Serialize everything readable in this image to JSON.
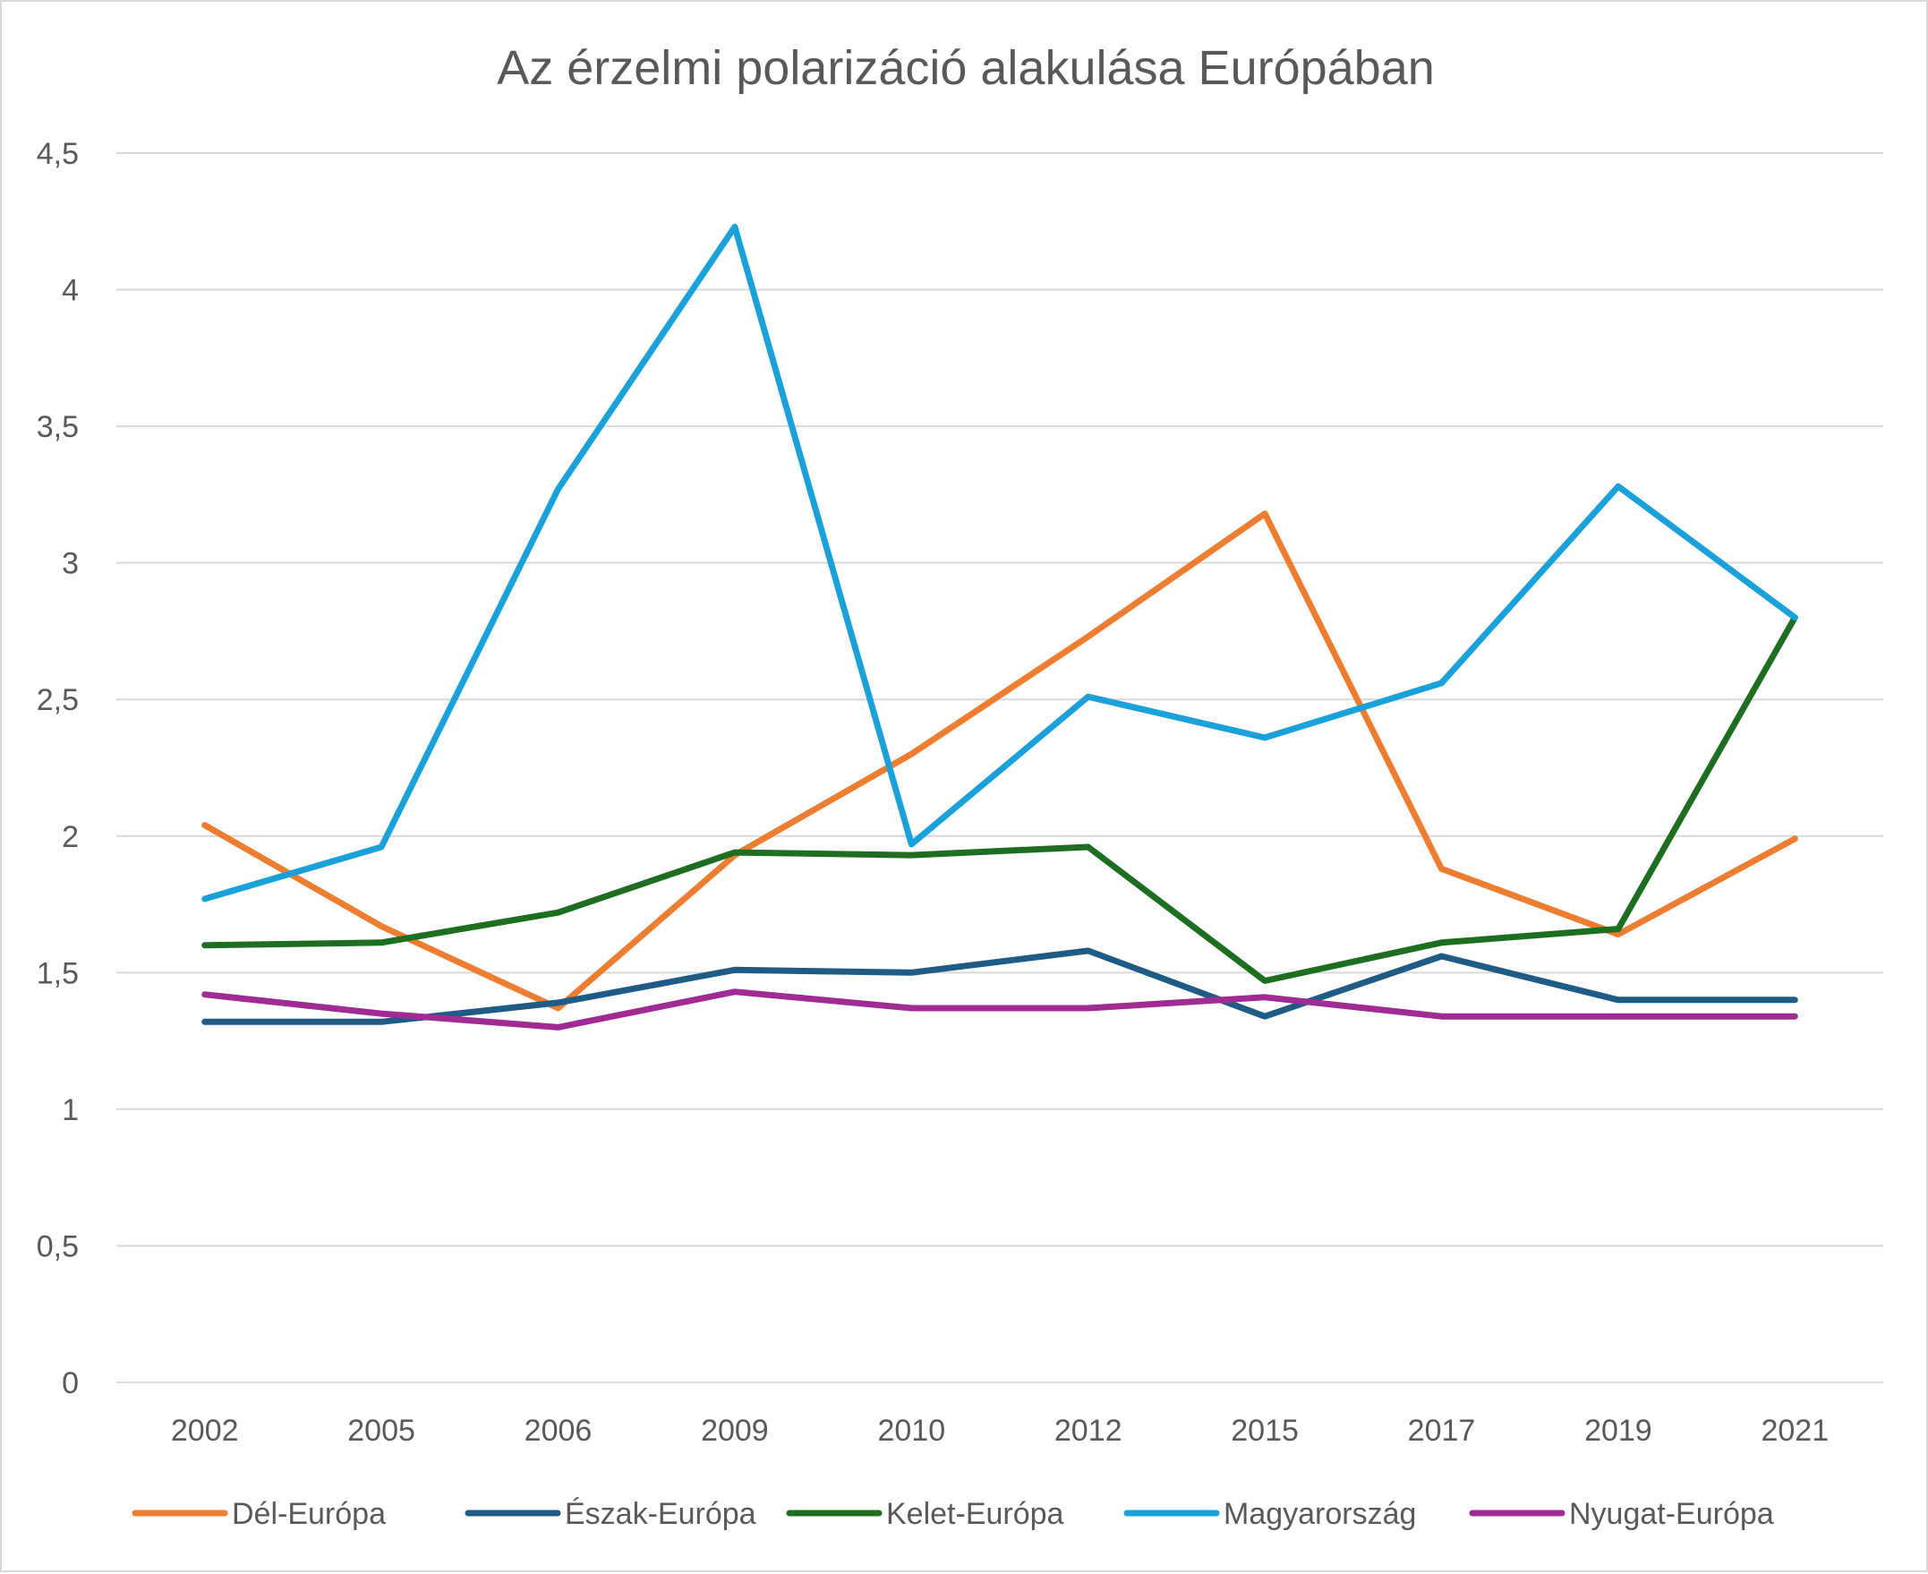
{
  "chart_data": {
    "type": "line",
    "title": "Az érzelmi polarizáció alakulása Európában",
    "xlabel": "",
    "ylabel": "",
    "ylim": [
      0,
      4.5
    ],
    "yticks": [
      "0",
      "0,5",
      "1",
      "1,5",
      "2",
      "2,5",
      "3",
      "3,5",
      "4",
      "4,5"
    ],
    "categories": [
      "2002",
      "2005",
      "2006",
      "2009",
      "2010",
      "2012",
      "2015",
      "2017",
      "2019",
      "2021"
    ],
    "grid": true,
    "legend_position": "bottom",
    "series": [
      {
        "name": "Dél-Európa",
        "color": "#ED7D31",
        "values": [
          2.04,
          1.67,
          1.37,
          1.93,
          2.3,
          2.73,
          3.18,
          1.88,
          1.64,
          1.99
        ]
      },
      {
        "name": "Észak-Európa",
        "color": "#1F5C85",
        "values": [
          1.32,
          1.32,
          1.39,
          1.51,
          1.5,
          1.58,
          1.34,
          1.56,
          1.4,
          1.4
        ]
      },
      {
        "name": "Kelet-Európa",
        "color": "#1E6E22",
        "values": [
          1.6,
          1.61,
          1.72,
          1.94,
          1.93,
          1.96,
          1.47,
          1.61,
          1.66,
          2.8
        ]
      },
      {
        "name": "Magyarország",
        "color": "#1BA1D9",
        "values": [
          1.77,
          1.96,
          3.27,
          4.23,
          1.97,
          2.51,
          2.36,
          2.56,
          3.28,
          2.8
        ]
      },
      {
        "name": "Nyugat-Európa",
        "color": "#A02B93",
        "values": [
          1.42,
          1.35,
          1.3,
          1.43,
          1.37,
          1.37,
          1.41,
          1.34,
          1.34,
          1.34
        ]
      }
    ]
  }
}
